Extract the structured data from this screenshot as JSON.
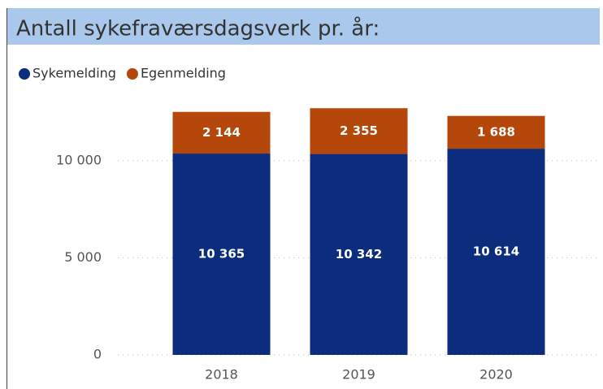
{
  "chart_data": {
    "type": "stacked_bar",
    "title": "Antall sykefraværsdagsverk pr. år:",
    "categories": [
      "2018",
      "2019",
      "2020"
    ],
    "series": [
      {
        "name": "Sykemelding",
        "color": "#0c2d7d",
        "values": [
          10365,
          10342,
          10614
        ],
        "value_labels": [
          "10 365",
          "10 342",
          "10 614"
        ]
      },
      {
        "name": "Egenmelding",
        "color": "#b5470b",
        "values": [
          2144,
          2355,
          1688
        ],
        "value_labels": [
          "2 144",
          "2 355",
          "1 688"
        ]
      }
    ],
    "ylim": [
      0,
      13000
    ],
    "yticks": [
      0,
      {
        "value": 5000,
        "label": "5 000"
      },
      {
        "value": 10000,
        "label": "10 000"
      }
    ],
    "grid": true
  }
}
